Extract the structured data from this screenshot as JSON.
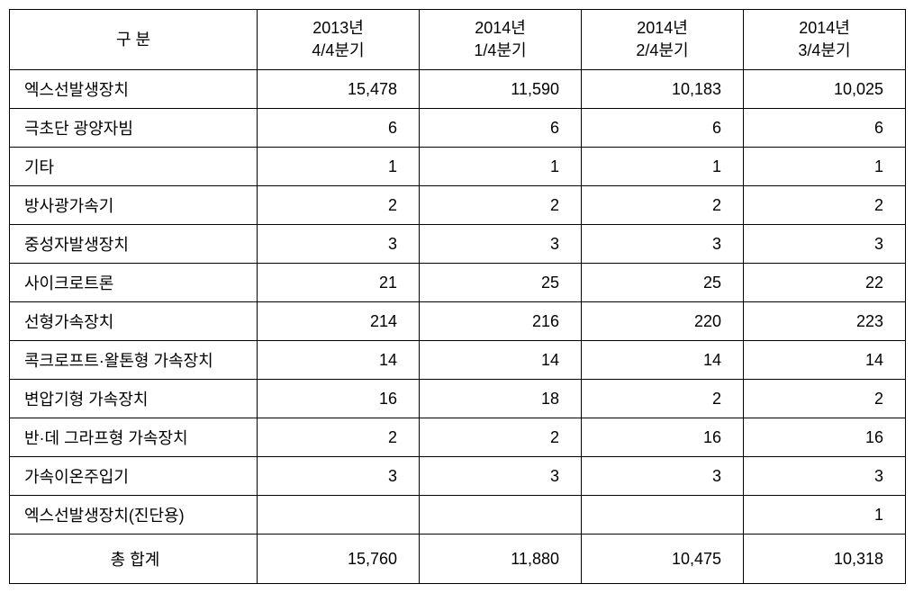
{
  "table": {
    "type": "table",
    "columns": [
      {
        "label_line1": "구 분",
        "label_line2": "",
        "align": "center",
        "is_label_col": true
      },
      {
        "label_line1": "2013년",
        "label_line2": "4/4분기",
        "align": "right"
      },
      {
        "label_line1": "2014년",
        "label_line2": "1/4분기",
        "align": "right"
      },
      {
        "label_line1": "2014년",
        "label_line2": "2/4분기",
        "align": "right"
      },
      {
        "label_line1": "2014년",
        "label_line2": "3/4분기",
        "align": "right"
      }
    ],
    "rows": [
      {
        "label": "엑스선발생장치",
        "values": [
          "15,478",
          "11,590",
          "10,183",
          "10,025"
        ]
      },
      {
        "label": "극초단 광양자빔",
        "values": [
          "6",
          "6",
          "6",
          "6"
        ]
      },
      {
        "label": "기타",
        "values": [
          "1",
          "1",
          "1",
          "1"
        ]
      },
      {
        "label": "방사광가속기",
        "values": [
          "2",
          "2",
          "2",
          "2"
        ]
      },
      {
        "label": "중성자발생장치",
        "values": [
          "3",
          "3",
          "3",
          "3"
        ]
      },
      {
        "label": "사이크로트론",
        "values": [
          "21",
          "25",
          "25",
          "22"
        ]
      },
      {
        "label": "선형가속장치",
        "values": [
          "214",
          "216",
          "220",
          "223"
        ]
      },
      {
        "label": "콕크로프트·왈톤형 가속장치",
        "values": [
          "14",
          "14",
          "14",
          "14"
        ]
      },
      {
        "label": "변압기형 가속장치",
        "values": [
          "16",
          "18",
          "2",
          "2"
        ]
      },
      {
        "label": "반·데 그라프형 가속장치",
        "values": [
          "2",
          "2",
          "16",
          "16"
        ]
      },
      {
        "label": "가속이온주입기",
        "values": [
          "3",
          "3",
          "3",
          "3"
        ]
      },
      {
        "label": "엑스선발생장치(진단용)",
        "values": [
          "",
          "",
          "",
          "1"
        ]
      }
    ],
    "total_row": {
      "label": "총 합계",
      "values": [
        "15,760",
        "11,880",
        "10,475",
        "10,318"
      ]
    },
    "styling": {
      "border_color": "#000000",
      "background_color": "#ffffff",
      "text_color": "#000000",
      "font_size": 18,
      "col_label_width": 275,
      "col_data_width": 180,
      "cell_padding_v": 8,
      "cell_padding_h_label": 16,
      "cell_padding_h_value": 24
    }
  }
}
